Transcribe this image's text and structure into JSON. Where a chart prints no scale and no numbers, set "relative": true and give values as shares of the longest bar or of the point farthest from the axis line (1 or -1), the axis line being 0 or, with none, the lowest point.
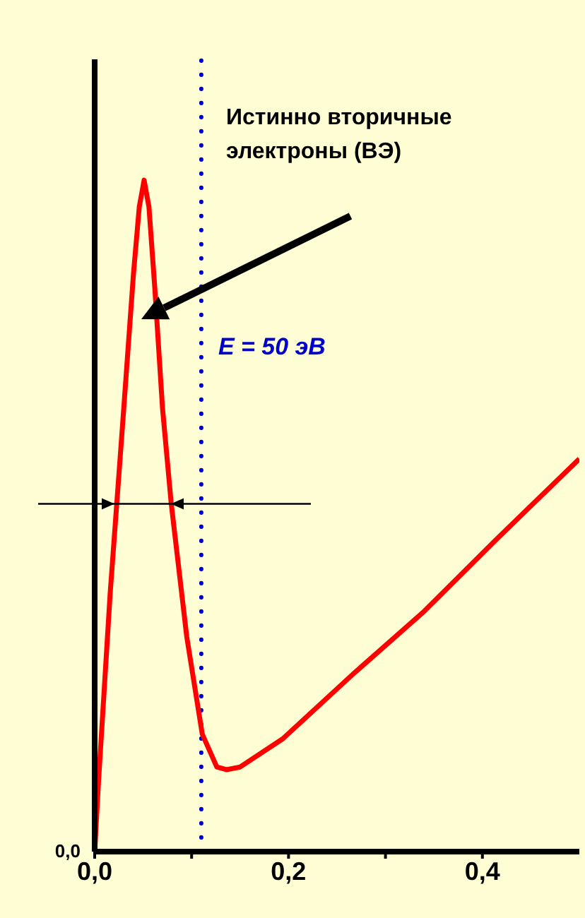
{
  "chart_data": {
    "type": "line",
    "relative": true,
    "x": [
      0,
      0.004,
      0.016,
      0.029,
      0.04,
      0.046,
      0.051,
      0.056,
      0.062,
      0.07,
      0.079,
      0.095,
      0.111,
      0.126,
      0.136,
      0.15,
      0.194,
      0.267,
      0.34,
      0.413,
      0.5
    ],
    "series": [
      {
        "color": "#ff0000",
        "values": [
          0,
          0.105,
          0.385,
          0.64,
          0.86,
          0.96,
          1,
          0.96,
          0.84,
          0.66,
          0.518,
          0.32,
          0.175,
          0.126,
          0.122,
          0.126,
          0.168,
          0.265,
          0.358,
          0.463,
          0.585
        ]
      }
    ],
    "xlim": [
      0,
      0.5
    ],
    "xticks": [
      {
        "value": 0,
        "label": "0,0"
      },
      {
        "value": 0.1,
        "label": null
      },
      {
        "value": 0.2,
        "label": "0,2"
      },
      {
        "value": 0.3,
        "label": null
      },
      {
        "value": 0.4,
        "label": "0,4"
      }
    ],
    "ref_lines": [
      {
        "axis": "x",
        "value": 0.11,
        "color": "#0000cc",
        "line_style": "dotted"
      },
      {
        "axis": "y",
        "value": 0.518,
        "color": "#000000",
        "line_style": "solid"
      }
    ],
    "annotations": [
      "0,0",
      "Истинно вторичные электроны (ВЭ)",
      "E = 50 эВ"
    ],
    "grid": false,
    "marker": "none",
    "line_style": "solid"
  }
}
